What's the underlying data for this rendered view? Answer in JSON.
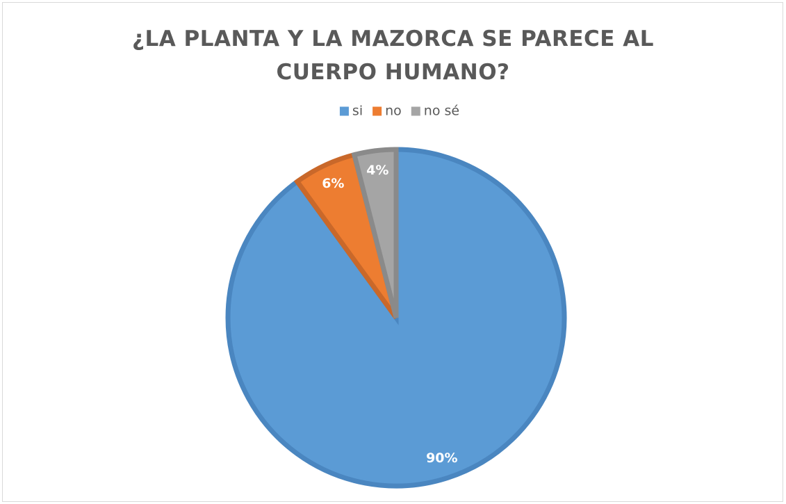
{
  "chart_data": {
    "type": "pie",
    "title": "¿LA PLANTA Y LA MAZORCA SE PARECE AL CUERPO HUMANO?",
    "categories": [
      "si",
      "no",
      "no sé"
    ],
    "values": [
      90,
      6,
      4
    ],
    "value_labels": [
      "90%",
      "6%",
      "4%"
    ],
    "colors": [
      "#5b9bd5",
      "#ed7d31",
      "#a5a5a5"
    ],
    "legend": "top"
  }
}
